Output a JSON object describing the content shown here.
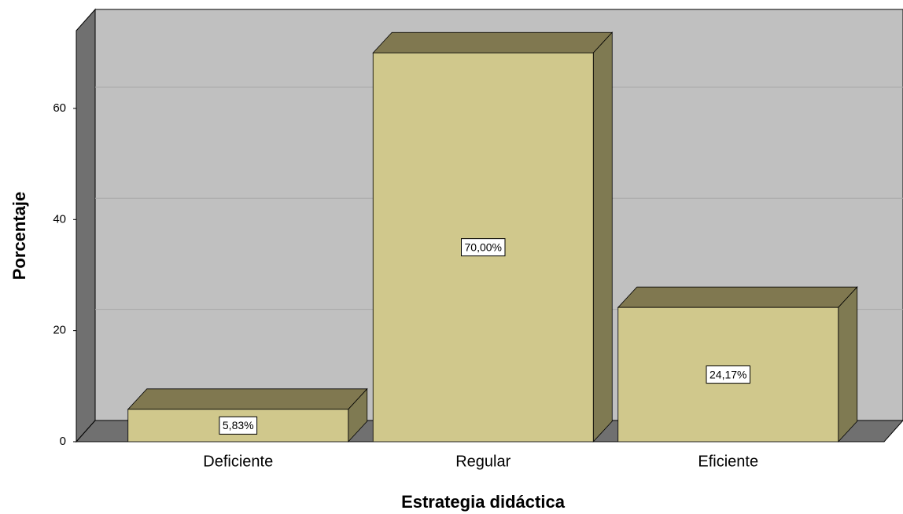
{
  "chart_data": {
    "type": "bar3d",
    "x_label": "Estrategia didáctica",
    "y_label": "Porcentaje",
    "categories": [
      "Deficiente",
      "Regular",
      "Eficiente"
    ],
    "values": [
      5.83,
      70,
      24.17
    ],
    "value_labels": [
      "5,83%",
      "70,00%",
      "24,17%"
    ],
    "color": "#d0c88c",
    "ylim": [
      0,
      74
    ],
    "yticks": [
      0,
      20,
      40,
      60
    ],
    "grid": true
  }
}
